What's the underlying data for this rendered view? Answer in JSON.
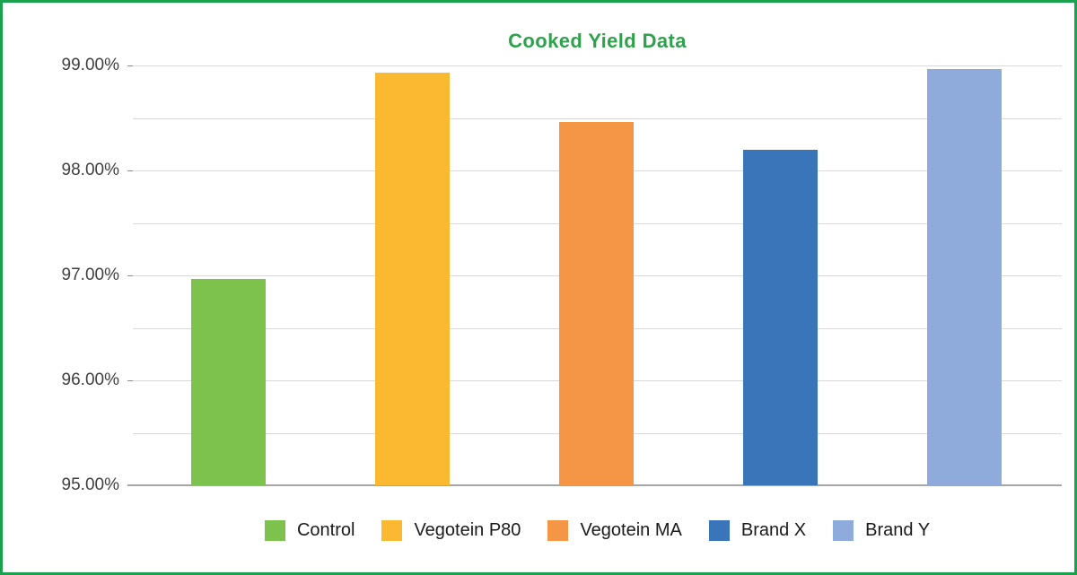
{
  "frame": {
    "border_color": "#1aa14d",
    "background_color": "#ffffff"
  },
  "chart_data": {
    "type": "bar",
    "title": "Cooked Yield Data",
    "title_color": "#2fa14c",
    "categories": [
      "Control",
      "Vegotein P80",
      "Vegotein MA",
      "Brand X",
      "Brand Y"
    ],
    "values": [
      96.97,
      98.93,
      98.46,
      98.2,
      98.97
    ],
    "colors": [
      "#7dc24d",
      "#fbb931",
      "#f59646",
      "#3975b8",
      "#8fabdc"
    ],
    "value_unit": "%",
    "ylim": [
      95,
      99
    ],
    "gridline_step": 0.5,
    "ytick_values": [
      95,
      96,
      97,
      98,
      99
    ],
    "ytick_labels": [
      "95.00%",
      "96.00%",
      "97.00%",
      "98.00%",
      "99.00%"
    ],
    "xlabel": "",
    "ylabel": "",
    "grid": true,
    "gridline_color": "#d9d9d9",
    "axis_line_color": "#a6a6a6",
    "tick_label_color": "#3f3f3f",
    "legend_position": "bottom",
    "legend_text_color": "#1a1a1a"
  }
}
